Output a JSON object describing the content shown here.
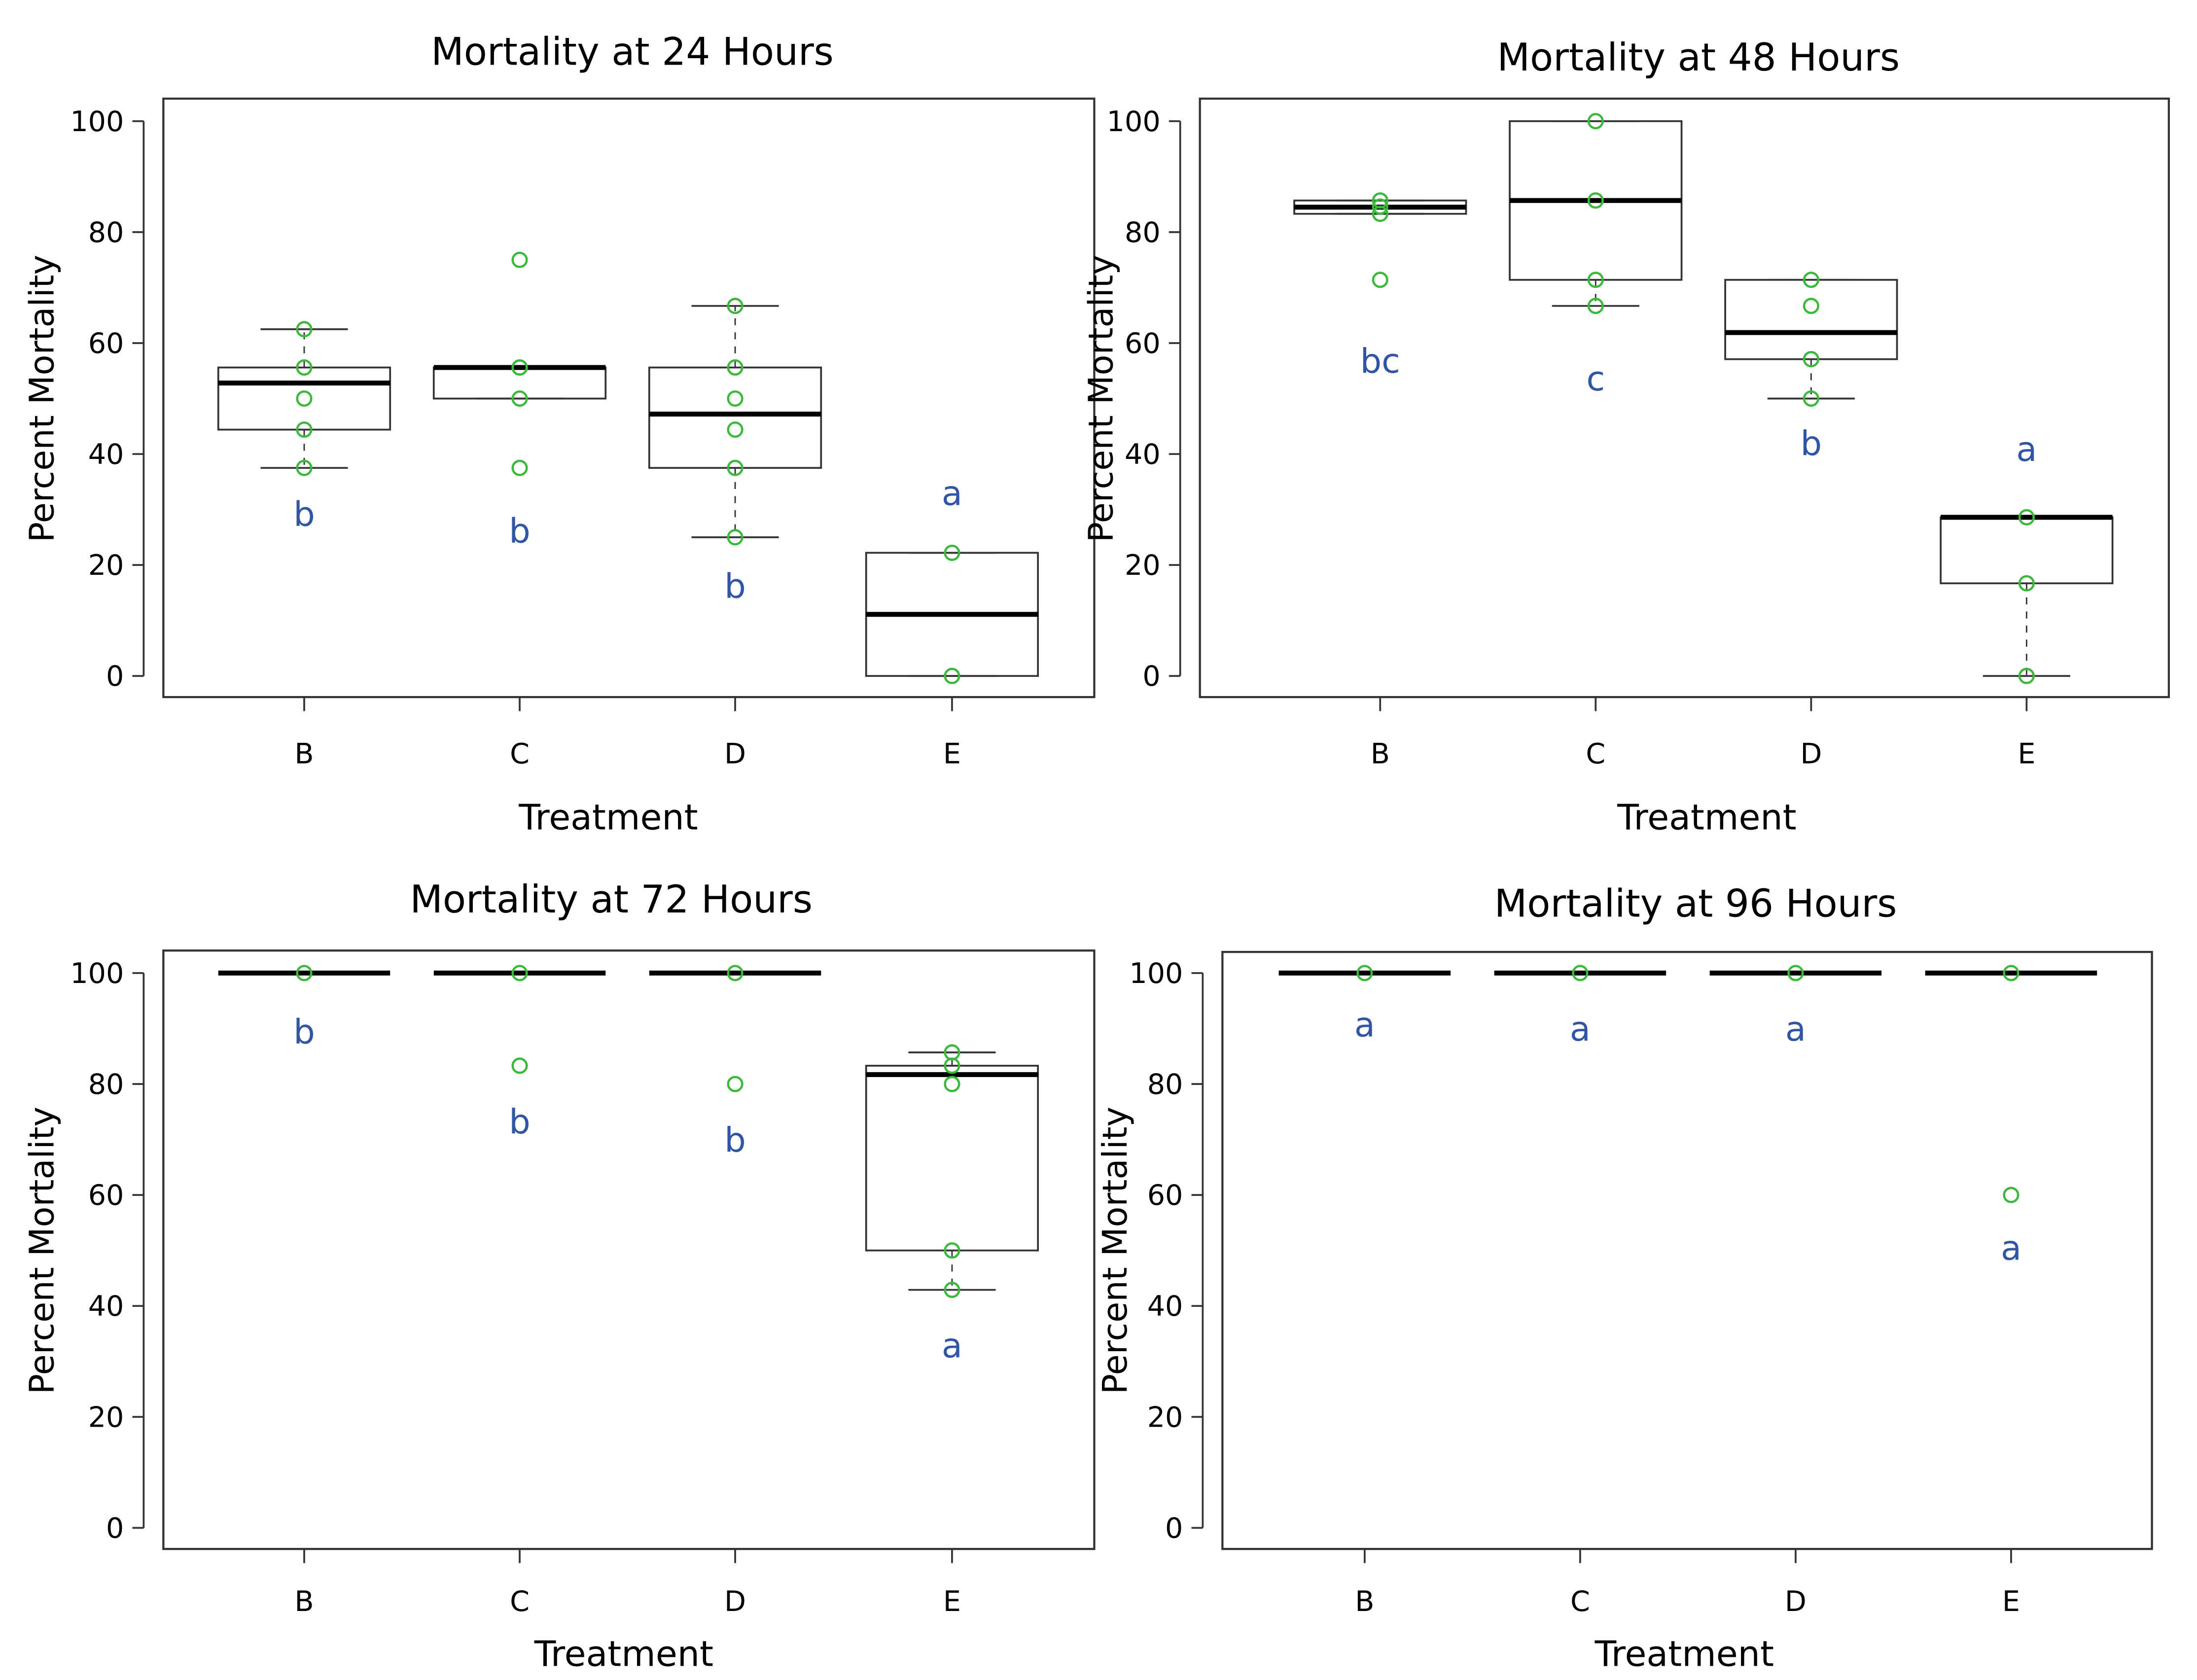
{
  "colors": {
    "points": "#3cb83c",
    "letters": "#2f55a4",
    "box": "#000000"
  },
  "chart_data": [
    {
      "type": "box",
      "title": "Mortality at 24 Hours",
      "xlabel": "Treatment",
      "ylabel": "Percent Mortality",
      "ylim": [
        0,
        100
      ],
      "yticks": [
        "0",
        "20",
        "40",
        "60",
        "80",
        "100"
      ],
      "categories": [
        "B",
        "C",
        "D",
        "E"
      ],
      "boxes": [
        {
          "q1": 44.4,
          "median": 52.8,
          "q3": 55.6,
          "whisker_low": 37.5,
          "whisker_high": 62.5,
          "points": [
            62.5,
            55.6,
            50,
            44.4,
            37.5
          ],
          "letter": "b"
        },
        {
          "q1": 50,
          "median": 55.6,
          "q3": 55.6,
          "whisker_low": 50,
          "whisker_high": 55.6,
          "points": [
            75,
            55.6,
            55.6,
            50,
            37.5
          ],
          "letter": "b"
        },
        {
          "q1": 37.5,
          "median": 47.2,
          "q3": 55.6,
          "whisker_low": 25,
          "whisker_high": 66.7,
          "points": [
            66.7,
            55.6,
            50,
            44.4,
            37.5,
            25
          ],
          "letter": "b"
        },
        {
          "q1": 0,
          "median": 11.1,
          "q3": 22.2,
          "whisker_low": 0,
          "whisker_high": 22.2,
          "points": [
            22.2,
            0
          ],
          "letter": "a"
        }
      ]
    },
    {
      "type": "box",
      "title": "Mortality at 48 Hours",
      "xlabel": "Treatment",
      "ylabel": "Percent Mortality",
      "ylim": [
        0,
        100
      ],
      "yticks": [
        "0",
        "20",
        "40",
        "60",
        "80",
        "100"
      ],
      "categories": [
        "B",
        "C",
        "D",
        "E"
      ],
      "boxes": [
        {
          "q1": 83.3,
          "median": 84.5,
          "q3": 85.7,
          "whisker_low": 83.3,
          "whisker_high": 85.7,
          "points": [
            85.7,
            84.6,
            83.3,
            71.4
          ],
          "letter": "bc"
        },
        {
          "q1": 71.4,
          "median": 85.7,
          "q3": 100,
          "whisker_low": 66.7,
          "whisker_high": 100,
          "points": [
            100,
            85.7,
            71.4,
            66.7
          ],
          "letter": "c"
        },
        {
          "q1": 57.1,
          "median": 61.9,
          "q3": 71.4,
          "whisker_low": 50,
          "whisker_high": 71.4,
          "points": [
            71.4,
            66.7,
            57.1,
            50
          ],
          "letter": "b"
        },
        {
          "q1": 16.7,
          "median": 28.6,
          "q3": 28.6,
          "whisker_low": 0,
          "whisker_high": 28.6,
          "points": [
            28.6,
            16.7,
            0
          ],
          "letter": "a"
        }
      ]
    },
    {
      "type": "box",
      "title": "Mortality at 72 Hours",
      "xlabel": "Treatment",
      "ylabel": "Percent Mortality",
      "ylim": [
        0,
        100
      ],
      "yticks": [
        "0",
        "20",
        "40",
        "60",
        "80",
        "100"
      ],
      "categories": [
        "B",
        "C",
        "D",
        "E"
      ],
      "boxes": [
        {
          "q1": 100,
          "median": 100,
          "q3": 100,
          "whisker_low": 100,
          "whisker_high": 100,
          "points": [
            100
          ],
          "letter": "b"
        },
        {
          "q1": 100,
          "median": 100,
          "q3": 100,
          "whisker_low": 100,
          "whisker_high": 100,
          "points": [
            100,
            83.3
          ],
          "letter": "b"
        },
        {
          "q1": 100,
          "median": 100,
          "q3": 100,
          "whisker_low": 100,
          "whisker_high": 100,
          "points": [
            100,
            80
          ],
          "letter": "b"
        },
        {
          "q1": 50,
          "median": 81.7,
          "q3": 83.3,
          "whisker_low": 42.9,
          "whisker_high": 85.7,
          "points": [
            85.7,
            83.3,
            80,
            50,
            42.9
          ],
          "letter": "a"
        }
      ]
    },
    {
      "type": "box",
      "title": "Mortality at 96 Hours",
      "xlabel": "Treatment",
      "ylabel": "Percent Mortality",
      "ylim": [
        0,
        100
      ],
      "yticks": [
        "0",
        "20",
        "40",
        "60",
        "80",
        "100"
      ],
      "categories": [
        "B",
        "C",
        "D",
        "E"
      ],
      "boxes": [
        {
          "q1": 100,
          "median": 100,
          "q3": 100,
          "whisker_low": 100,
          "whisker_high": 100,
          "points": [
            100
          ],
          "letter": "a"
        },
        {
          "q1": 100,
          "median": 100,
          "q3": 100,
          "whisker_low": 100,
          "whisker_high": 100,
          "points": [
            100
          ],
          "letter": "a"
        },
        {
          "q1": 100,
          "median": 100,
          "q3": 100,
          "whisker_low": 100,
          "whisker_high": 100,
          "points": [
            100
          ],
          "letter": "a"
        },
        {
          "q1": 100,
          "median": 100,
          "q3": 100,
          "whisker_low": 100,
          "whisker_high": 100,
          "points": [
            100,
            60
          ],
          "letter": "a"
        }
      ]
    }
  ]
}
